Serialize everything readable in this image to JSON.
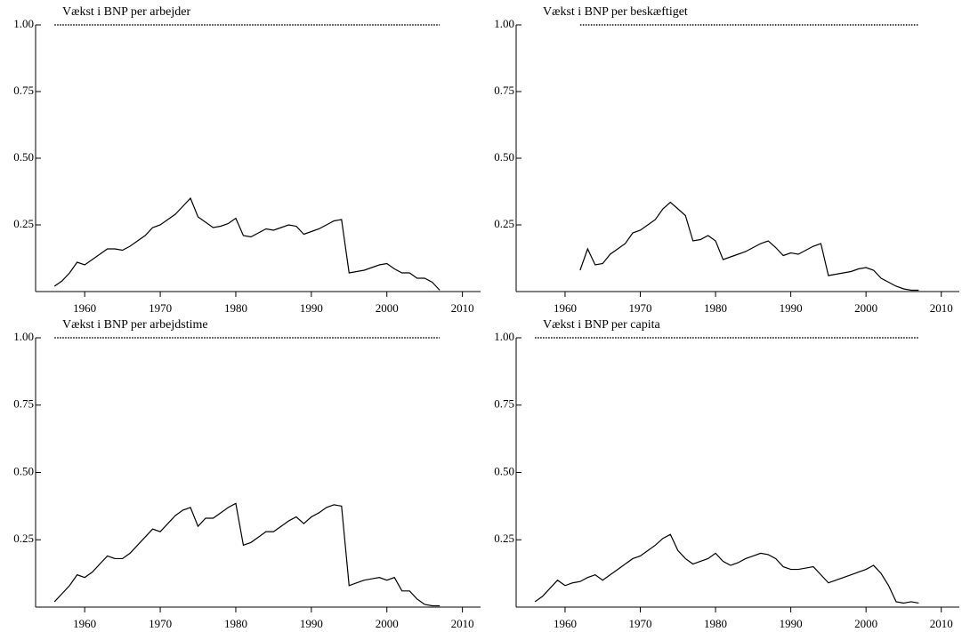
{
  "chart_data": [
    {
      "type": "line",
      "title": "Vækst i BNP per arbejder",
      "hline": 1,
      "x": [
        1956,
        1957,
        1958,
        1959,
        1960,
        1961,
        1962,
        1963,
        1964,
        1965,
        1966,
        1967,
        1968,
        1969,
        1970,
        1971,
        1972,
        1973,
        1974,
        1975,
        1976,
        1977,
        1978,
        1979,
        1980,
        1981,
        1982,
        1983,
        1984,
        1985,
        1986,
        1987,
        1988,
        1989,
        1990,
        1991,
        1992,
        1993,
        1994,
        1995,
        1996,
        1997,
        1998,
        1999,
        2000,
        2001,
        2002,
        2003,
        2004,
        2005,
        2006,
        2007
      ],
      "values": [
        0.02,
        0.04,
        0.07,
        0.11,
        0.1,
        0.12,
        0.14,
        0.16,
        0.16,
        0.155,
        0.17,
        0.19,
        0.21,
        0.24,
        0.25,
        0.27,
        0.29,
        0.32,
        0.35,
        0.28,
        0.26,
        0.24,
        0.245,
        0.255,
        0.275,
        0.21,
        0.205,
        0.22,
        0.235,
        0.23,
        0.24,
        0.25,
        0.245,
        0.215,
        0.225,
        0.235,
        0.25,
        0.265,
        0.27,
        0.07,
        0.075,
        0.08,
        0.09,
        0.1,
        0.105,
        0.085,
        0.07,
        0.07,
        0.05,
        0.05,
        0.035,
        0.005
      ],
      "color": "#000000",
      "xlim": [
        1953.5,
        2012.4
      ],
      "ylim": [
        0,
        1
      ],
      "xticks": [
        1960,
        1970,
        1980,
        1990,
        2000,
        2010
      ],
      "yticks": [
        0.25,
        {
          "value": 0.5,
          "label": "0.50"
        },
        0.75,
        {
          "value": 1,
          "label": "1.00"
        }
      ]
    },
    {
      "type": "line",
      "title": "Vækst i BNP per beskæftiget",
      "hline": 1,
      "x": [
        1962,
        1963,
        1964,
        1965,
        1966,
        1967,
        1968,
        1969,
        1970,
        1971,
        1972,
        1973,
        1974,
        1975,
        1976,
        1977,
        1978,
        1979,
        1980,
        1981,
        1982,
        1983,
        1984,
        1985,
        1986,
        1987,
        1988,
        1989,
        1990,
        1991,
        1992,
        1993,
        1994,
        1995,
        1996,
        1997,
        1998,
        1999,
        2000,
        2001,
        2002,
        2003,
        2004,
        2005,
        2006,
        2007
      ],
      "values": [
        0.08,
        0.16,
        0.1,
        0.105,
        0.14,
        0.16,
        0.18,
        0.22,
        0.23,
        0.25,
        0.27,
        0.31,
        0.335,
        0.31,
        0.285,
        0.19,
        0.195,
        0.21,
        0.19,
        0.12,
        0.13,
        0.14,
        0.15,
        0.165,
        0.18,
        0.19,
        0.165,
        0.135,
        0.145,
        0.14,
        0.155,
        0.17,
        0.18,
        0.06,
        0.065,
        0.07,
        0.075,
        0.085,
        0.09,
        0.08,
        0.05,
        0.035,
        0.02,
        0.01,
        0.005,
        0.005
      ],
      "color": "#000000",
      "xlim": [
        1953.5,
        2012.4
      ],
      "ylim": [
        0,
        1
      ],
      "xticks": [
        1960,
        1970,
        1980,
        1990,
        2000,
        2010
      ],
      "yticks": [
        0.25,
        {
          "value": 0.5,
          "label": "0.50"
        },
        0.75,
        {
          "value": 1,
          "label": "1.00"
        }
      ]
    },
    {
      "type": "line",
      "title": "Vækst i BNP per arbejdstime",
      "hline": 1,
      "x": [
        1956,
        1957,
        1958,
        1959,
        1960,
        1961,
        1962,
        1963,
        1964,
        1965,
        1966,
        1967,
        1968,
        1969,
        1970,
        1971,
        1972,
        1973,
        1974,
        1975,
        1976,
        1977,
        1978,
        1979,
        1980,
        1981,
        1982,
        1983,
        1984,
        1985,
        1986,
        1987,
        1988,
        1989,
        1990,
        1991,
        1992,
        1993,
        1994,
        1995,
        1996,
        1997,
        1998,
        1999,
        2000,
        2001,
        2002,
        2003,
        2004,
        2005,
        2006,
        2007
      ],
      "values": [
        0.02,
        0.05,
        0.08,
        0.12,
        0.11,
        0.13,
        0.16,
        0.19,
        0.18,
        0.18,
        0.2,
        0.23,
        0.26,
        0.29,
        0.28,
        0.31,
        0.34,
        0.36,
        0.37,
        0.3,
        0.33,
        0.33,
        0.35,
        0.37,
        0.385,
        0.23,
        0.24,
        0.26,
        0.28,
        0.28,
        0.3,
        0.32,
        0.335,
        0.31,
        0.335,
        0.35,
        0.37,
        0.38,
        0.375,
        0.08,
        0.09,
        0.1,
        0.105,
        0.11,
        0.1,
        0.11,
        0.06,
        0.06,
        0.03,
        0.01,
        0.005,
        0.005
      ],
      "color": "#000000",
      "xlim": [
        1953.5,
        2012.4
      ],
      "ylim": [
        0,
        1
      ],
      "xticks": [
        1960,
        1970,
        1980,
        1990,
        2000,
        2010
      ],
      "yticks": [
        0.25,
        {
          "value": 0.5,
          "label": "0.50"
        },
        0.75,
        {
          "value": 1,
          "label": "1.00"
        }
      ]
    },
    {
      "type": "line",
      "title": "Vækst i BNP per capita",
      "hline": 1,
      "x": [
        1956,
        1957,
        1958,
        1959,
        1960,
        1961,
        1962,
        1963,
        1964,
        1965,
        1966,
        1967,
        1968,
        1969,
        1970,
        1971,
        1972,
        1973,
        1974,
        1975,
        1976,
        1977,
        1978,
        1979,
        1980,
        1981,
        1982,
        1983,
        1984,
        1985,
        1986,
        1987,
        1988,
        1989,
        1990,
        1991,
        1992,
        1993,
        1994,
        1995,
        1996,
        1997,
        1998,
        1999,
        2000,
        2001,
        2002,
        2003,
        2004,
        2005,
        2006,
        2007
      ],
      "values": [
        0.02,
        0.04,
        0.07,
        0.1,
        0.08,
        0.09,
        0.095,
        0.11,
        0.12,
        0.1,
        0.12,
        0.14,
        0.16,
        0.18,
        0.19,
        0.21,
        0.23,
        0.255,
        0.27,
        0.21,
        0.18,
        0.16,
        0.17,
        0.18,
        0.2,
        0.17,
        0.155,
        0.165,
        0.18,
        0.19,
        0.2,
        0.195,
        0.18,
        0.15,
        0.14,
        0.14,
        0.145,
        0.15,
        0.12,
        0.09,
        0.1,
        0.11,
        0.12,
        0.13,
        0.14,
        0.155,
        0.125,
        0.08,
        0.02,
        0.015,
        0.02,
        0.015
      ],
      "color": "#000000",
      "xlim": [
        1953.5,
        2012.4
      ],
      "ylim": [
        0,
        1
      ],
      "xticks": [
        1960,
        1970,
        1980,
        1990,
        2000,
        2010
      ],
      "yticks": [
        0.25,
        {
          "value": 0.5,
          "label": "0.50"
        },
        0.75,
        {
          "value": 1,
          "label": "1.00"
        }
      ]
    }
  ]
}
